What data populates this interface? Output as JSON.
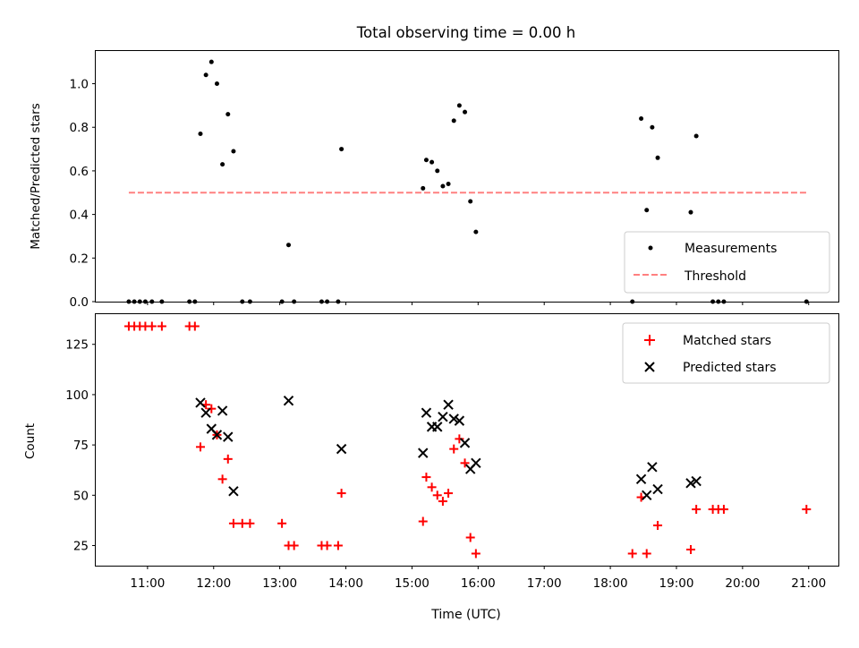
{
  "figure_title": "Total observing time = 0.00 h",
  "xlabel": "Time (UTC)",
  "x_ticks": [
    "11:00",
    "12:00",
    "13:00",
    "14:00",
    "15:00",
    "16:00",
    "17:00",
    "18:00",
    "19:00",
    "20:00",
    "21:00"
  ],
  "chart_data": [
    {
      "type": "scatter",
      "panel": "top",
      "ylabel": "Matched/Predicted stars",
      "xlim": [
        "10:13",
        "21:27"
      ],
      "ylim": [
        0,
        1.15
      ],
      "y_ticks": [
        "0.0",
        "0.2",
        "0.4",
        "0.6",
        "0.8",
        "1.0"
      ],
      "y_tick_values": [
        0,
        0.2,
        0.4,
        0.6,
        0.8,
        1.0
      ],
      "legend_position": "lower-right",
      "series": [
        {
          "name": "Measurements",
          "marker": "dot",
          "color": "#000000",
          "points": [
            [
              "10:43",
              0
            ],
            [
              "10:48",
              0
            ],
            [
              "10:53",
              0
            ],
            [
              "10:58",
              0
            ],
            [
              "11:04",
              0
            ],
            [
              "11:13",
              0
            ],
            [
              "11:38",
              0
            ],
            [
              "11:43",
              0
            ],
            [
              "11:48",
              0.77
            ],
            [
              "11:53",
              1.04
            ],
            [
              "11:58",
              1.1
            ],
            [
              "12:03",
              1.0
            ],
            [
              "12:08",
              0.63
            ],
            [
              "12:13",
              0.86
            ],
            [
              "12:18",
              0.69
            ],
            [
              "12:26",
              0
            ],
            [
              "12:33",
              0
            ],
            [
              "13:02",
              0
            ],
            [
              "13:08",
              0.26
            ],
            [
              "13:13",
              0
            ],
            [
              "13:38",
              0
            ],
            [
              "13:43",
              0
            ],
            [
              "13:53",
              0
            ],
            [
              "13:56",
              0.7
            ],
            [
              "15:10",
              0.52
            ],
            [
              "15:13",
              0.65
            ],
            [
              "15:18",
              0.64
            ],
            [
              "15:23",
              0.6
            ],
            [
              "15:28",
              0.53
            ],
            [
              "15:33",
              0.54
            ],
            [
              "15:38",
              0.83
            ],
            [
              "15:43",
              0.9
            ],
            [
              "15:48",
              0.87
            ],
            [
              "15:53",
              0.46
            ],
            [
              "15:58",
              0.32
            ],
            [
              "18:20",
              0
            ],
            [
              "18:28",
              0.84
            ],
            [
              "18:33",
              0.42
            ],
            [
              "18:38",
              0.8
            ],
            [
              "18:43",
              0.66
            ],
            [
              "19:13",
              0.41
            ],
            [
              "19:18",
              0.76
            ],
            [
              "19:33",
              0
            ],
            [
              "19:38",
              0
            ],
            [
              "19:43",
              0
            ],
            [
              "20:58",
              0
            ]
          ]
        },
        {
          "name": "Threshold",
          "style": "dashed",
          "color": "#ff8080",
          "points": [
            [
              "10:43",
              0.5
            ],
            [
              "21:00",
              0.5
            ]
          ]
        }
      ]
    },
    {
      "type": "scatter",
      "panel": "bottom",
      "ylabel": "Count",
      "xlim": [
        "10:13",
        "21:27"
      ],
      "ylim": [
        15,
        140
      ],
      "y_ticks": [
        "25",
        "50",
        "75",
        "100",
        "125"
      ],
      "y_tick_values": [
        25,
        50,
        75,
        100,
        125
      ],
      "legend_position": "upper-right",
      "series": [
        {
          "name": "Matched stars",
          "marker": "plus",
          "color": "#ff0000",
          "points": [
            [
              "10:43",
              134
            ],
            [
              "10:48",
              134
            ],
            [
              "10:53",
              134
            ],
            [
              "10:58",
              134
            ],
            [
              "11:04",
              134
            ],
            [
              "11:13",
              134
            ],
            [
              "11:38",
              134
            ],
            [
              "11:43",
              134
            ],
            [
              "11:48",
              74
            ],
            [
              "11:53",
              95
            ],
            [
              "11:58",
              93
            ],
            [
              "12:03",
              80
            ],
            [
              "12:08",
              58
            ],
            [
              "12:13",
              68
            ],
            [
              "12:18",
              36
            ],
            [
              "12:26",
              36
            ],
            [
              "12:33",
              36
            ],
            [
              "13:02",
              36
            ],
            [
              "13:08",
              25
            ],
            [
              "13:13",
              25
            ],
            [
              "13:38",
              25
            ],
            [
              "13:43",
              25
            ],
            [
              "13:53",
              25
            ],
            [
              "13:56",
              51
            ],
            [
              "15:10",
              37
            ],
            [
              "15:13",
              59
            ],
            [
              "15:18",
              54
            ],
            [
              "15:23",
              50
            ],
            [
              "15:28",
              47
            ],
            [
              "15:33",
              51
            ],
            [
              "15:38",
              73
            ],
            [
              "15:43",
              78
            ],
            [
              "15:48",
              66
            ],
            [
              "15:53",
              29
            ],
            [
              "15:58",
              21
            ],
            [
              "18:20",
              21
            ],
            [
              "18:28",
              49
            ],
            [
              "18:33",
              21
            ],
            [
              "18:43",
              35
            ],
            [
              "19:13",
              23
            ],
            [
              "19:18",
              43
            ],
            [
              "19:33",
              43
            ],
            [
              "19:38",
              43
            ],
            [
              "19:43",
              43
            ],
            [
              "20:58",
              43
            ]
          ]
        },
        {
          "name": "Predicted stars",
          "marker": "cross",
          "color": "#000000",
          "points": [
            [
              "11:48",
              96
            ],
            [
              "11:53",
              91
            ],
            [
              "11:58",
              83
            ],
            [
              "12:03",
              80
            ],
            [
              "12:08",
              92
            ],
            [
              "12:13",
              79
            ],
            [
              "12:18",
              52
            ],
            [
              "13:08",
              97
            ],
            [
              "13:56",
              73
            ],
            [
              "15:10",
              71
            ],
            [
              "15:13",
              91
            ],
            [
              "15:18",
              84
            ],
            [
              "15:23",
              84
            ],
            [
              "15:28",
              89
            ],
            [
              "15:33",
              95
            ],
            [
              "15:38",
              88
            ],
            [
              "15:43",
              87
            ],
            [
              "15:48",
              76
            ],
            [
              "15:53",
              63
            ],
            [
              "15:58",
              66
            ],
            [
              "18:28",
              58
            ],
            [
              "18:33",
              50
            ],
            [
              "18:38",
              64
            ],
            [
              "18:43",
              53
            ],
            [
              "19:13",
              56
            ],
            [
              "19:18",
              57
            ]
          ]
        }
      ]
    }
  ]
}
